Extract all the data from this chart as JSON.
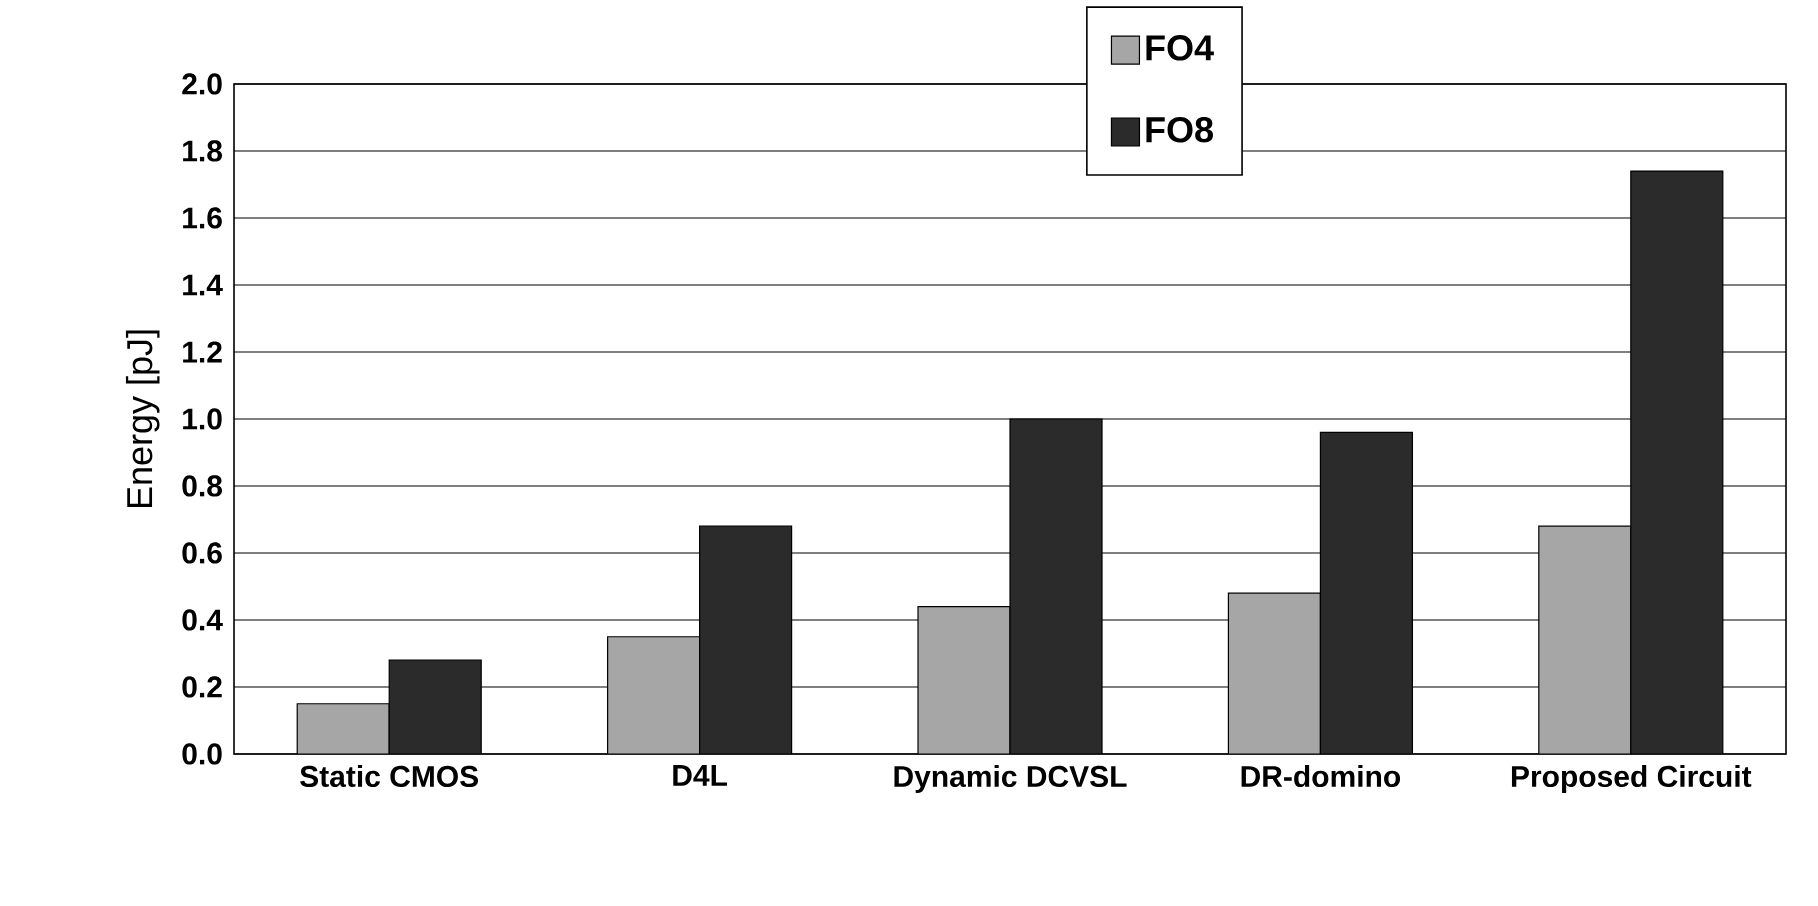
{
  "chart_data": {
    "type": "bar",
    "ylabel": "Energy [pJ]",
    "categories": [
      "Static CMOS",
      "D4L",
      "Dynamic DCVSL",
      "DR-domino",
      "Proposed Circuit"
    ],
    "series": [
      {
        "name": "FO4",
        "color": "#a6a6a6",
        "values": [
          0.15,
          0.35,
          0.44,
          0.48,
          0.68
        ]
      },
      {
        "name": "FO8",
        "color": "#2b2b2b",
        "values": [
          0.28,
          0.68,
          1.0,
          0.96,
          1.74
        ]
      }
    ],
    "ylim": [
      0,
      2.0
    ],
    "yticks": [
      {
        "value": 0,
        "label": "0.0"
      },
      {
        "value": 0.2,
        "label": "0.2"
      },
      {
        "value": 0.4,
        "label": "0.4"
      },
      {
        "value": 0.6,
        "label": "0.6"
      },
      {
        "value": 0.8,
        "label": "0.8"
      },
      {
        "value": 1.0,
        "label": "1.0"
      },
      {
        "value": 1.2,
        "label": "1.2"
      },
      {
        "value": 1.4,
        "label": "1.4"
      },
      {
        "value": 1.6,
        "label": "1.6"
      },
      {
        "value": 1.8,
        "label": "1.8"
      },
      {
        "value": 2.0,
        "label": "2.0"
      }
    ],
    "grid": "y",
    "legend": "top"
  }
}
